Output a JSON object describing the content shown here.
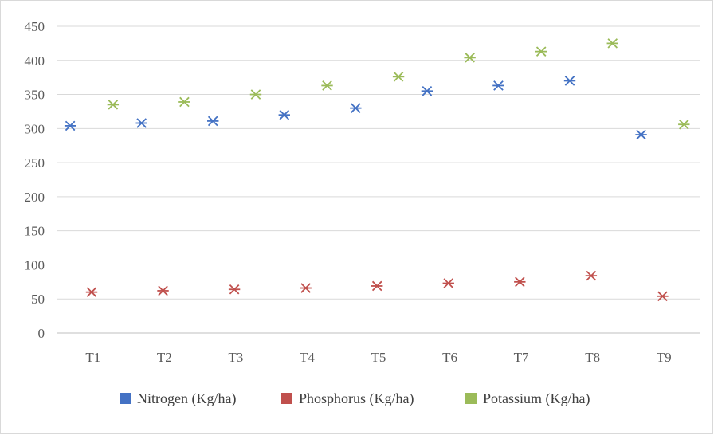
{
  "chart_data": {
    "type": "scatter",
    "title": "",
    "xlabel": "",
    "ylabel": "",
    "categories": [
      "T1",
      "T2",
      "T3",
      "T4",
      "T5",
      "T6",
      "T7",
      "T8",
      "T9"
    ],
    "ylim": [
      0,
      450
    ],
    "yticks": [
      "0",
      "50",
      "100",
      "150",
      "200",
      "250",
      "300",
      "350",
      "400",
      "450"
    ],
    "grid": true,
    "legend_position": "bottom",
    "marker": "star",
    "series": [
      {
        "name": "Nitrogen (Kg/ha)",
        "color": "#4472c4",
        "values": [
          304,
          308,
          311,
          320,
          330,
          355,
          363,
          370,
          291
        ]
      },
      {
        "name": "Phosphorus (Kg/ha)",
        "color": "#c0504d",
        "values": [
          60,
          62,
          64,
          66,
          69,
          73,
          75,
          84,
          54
        ]
      },
      {
        "name": "Potassium (Kg/ha)",
        "color": "#9bbb59",
        "values": [
          335,
          339,
          350,
          363,
          376,
          404,
          413,
          425,
          306
        ]
      }
    ]
  }
}
